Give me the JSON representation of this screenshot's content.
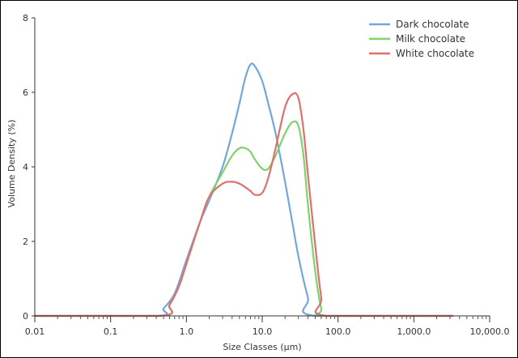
{
  "chart_data": {
    "type": "line",
    "xlabel": "Size Classes (µm)",
    "ylabel": "Volume Density (%)",
    "x_scale": "log",
    "xlim": [
      0.01,
      10000
    ],
    "ylim": [
      0,
      8
    ],
    "x_ticks": [
      {
        "value": 0.01,
        "label": "0.01"
      },
      {
        "value": 0.1,
        "label": "0.1"
      },
      {
        "value": 1,
        "label": "1.0"
      },
      {
        "value": 10,
        "label": "10.0"
      },
      {
        "value": 100,
        "label": "100.0"
      },
      {
        "value": 1000,
        "label": "1,000.0"
      },
      {
        "value": 10000,
        "label": "10,000.0"
      }
    ],
    "y_ticks": [
      {
        "value": 0,
        "label": "0"
      },
      {
        "value": 2,
        "label": "2"
      },
      {
        "value": 4,
        "label": "4"
      },
      {
        "value": 6,
        "label": "6"
      },
      {
        "value": 8,
        "label": "8"
      }
    ],
    "legend_position": "top-right",
    "series": [
      {
        "name": "Dark chocolate",
        "color": "#74a7d9",
        "points": [
          [
            0.01,
            0
          ],
          [
            0.4,
            0
          ],
          [
            0.5,
            0.2
          ],
          [
            0.7,
            0.6
          ],
          [
            1,
            1.5
          ],
          [
            1.5,
            2.5
          ],
          [
            2,
            3.1
          ],
          [
            3,
            4.0
          ],
          [
            4,
            4.9
          ],
          [
            5,
            5.7
          ],
          [
            6,
            6.4
          ],
          [
            7,
            6.75
          ],
          [
            8,
            6.7
          ],
          [
            10,
            6.3
          ],
          [
            12,
            5.7
          ],
          [
            15,
            4.9
          ],
          [
            20,
            3.6
          ],
          [
            25,
            2.5
          ],
          [
            30,
            1.6
          ],
          [
            40,
            0.5
          ],
          [
            50,
            0
          ],
          [
            3300,
            0
          ]
        ]
      },
      {
        "name": "Milk chocolate",
        "color": "#7ed36b",
        "points": [
          [
            0.01,
            0
          ],
          [
            0.45,
            0
          ],
          [
            0.6,
            0.3
          ],
          [
            0.8,
            0.8
          ],
          [
            1,
            1.4
          ],
          [
            1.5,
            2.5
          ],
          [
            2,
            3.2
          ],
          [
            3,
            3.85
          ],
          [
            4,
            4.3
          ],
          [
            5,
            4.5
          ],
          [
            6,
            4.5
          ],
          [
            7,
            4.4
          ],
          [
            8,
            4.2
          ],
          [
            10,
            3.95
          ],
          [
            12,
            3.95
          ],
          [
            15,
            4.3
          ],
          [
            20,
            4.9
          ],
          [
            25,
            5.2
          ],
          [
            30,
            5.1
          ],
          [
            35,
            4.3
          ],
          [
            40,
            3.0
          ],
          [
            50,
            1.2
          ],
          [
            60,
            0.2
          ],
          [
            70,
            0
          ],
          [
            3300,
            0
          ]
        ]
      },
      {
        "name": "White chocolate",
        "color": "#e07070",
        "points": [
          [
            0.01,
            0
          ],
          [
            0.45,
            0
          ],
          [
            0.6,
            0.3
          ],
          [
            0.8,
            0.8
          ],
          [
            1,
            1.4
          ],
          [
            1.5,
            2.5
          ],
          [
            2,
            3.2
          ],
          [
            3,
            3.55
          ],
          [
            4,
            3.6
          ],
          [
            5,
            3.55
          ],
          [
            6,
            3.45
          ],
          [
            7,
            3.35
          ],
          [
            8,
            3.25
          ],
          [
            10,
            3.3
          ],
          [
            12,
            3.7
          ],
          [
            15,
            4.5
          ],
          [
            20,
            5.6
          ],
          [
            25,
            5.95
          ],
          [
            30,
            5.85
          ],
          [
            35,
            5.0
          ],
          [
            40,
            3.8
          ],
          [
            50,
            1.9
          ],
          [
            60,
            0.5
          ],
          [
            70,
            0
          ],
          [
            3300,
            0
          ]
        ]
      }
    ]
  }
}
